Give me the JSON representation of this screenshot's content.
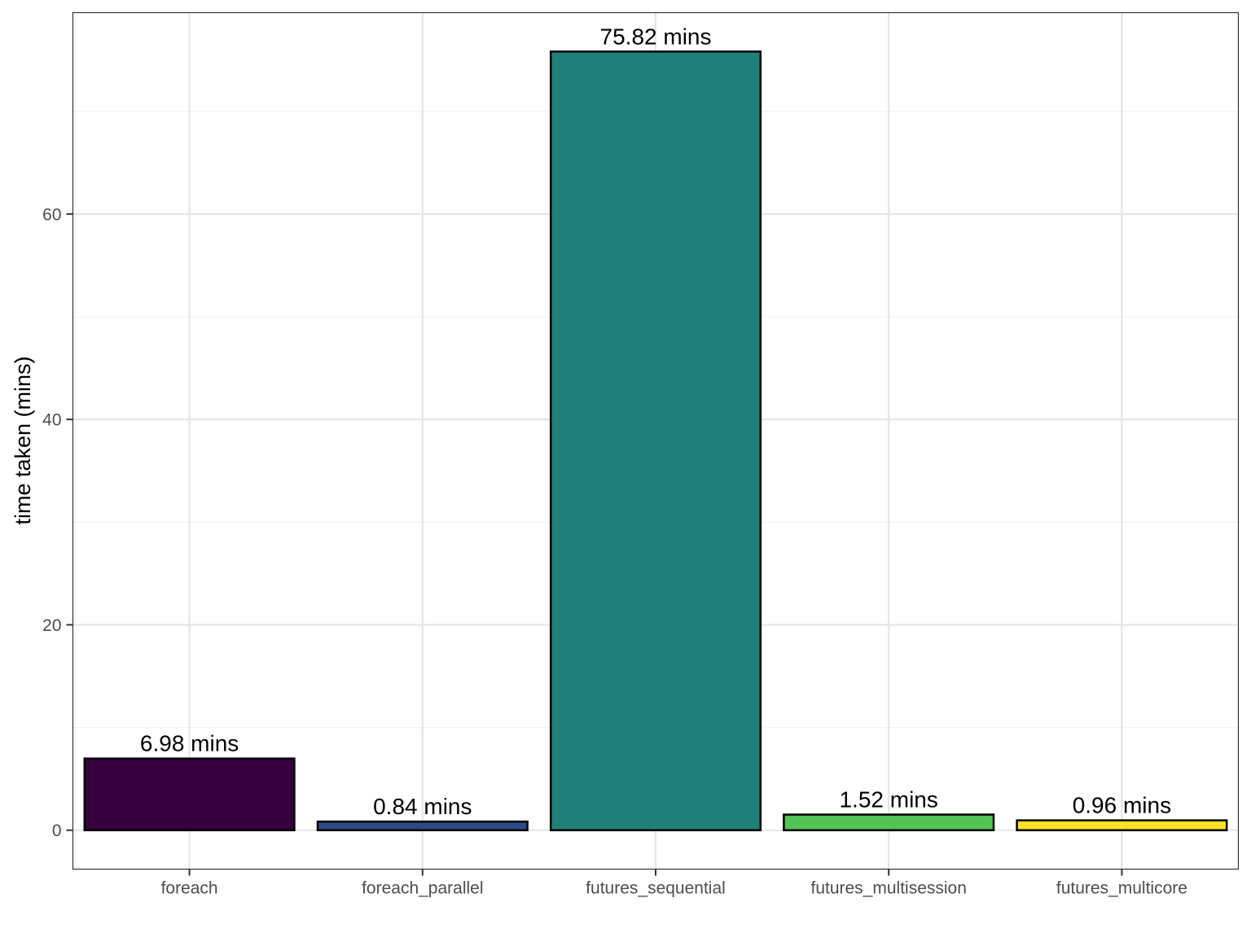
{
  "chart_data": {
    "type": "bar",
    "categories": [
      "foreach",
      "foreach_parallel",
      "futures_sequential",
      "futures_multisession",
      "futures_multicore"
    ],
    "values": [
      6.98,
      0.84,
      75.82,
      1.52,
      0.96
    ],
    "data_labels": [
      "6.98 mins",
      "0.84 mins",
      "75.82 mins",
      "1.52 mins",
      "0.96 mins"
    ],
    "colors": [
      "#35003D",
      "#2E4A85",
      "#208079",
      "#53C356",
      "#F9E224"
    ],
    "title": "",
    "xlabel": "",
    "ylabel": "time taken (mins)",
    "ylim": [
      -3.79,
      79.61
    ],
    "yticks": [
      0,
      20,
      40,
      60
    ],
    "ytick_labels": [
      "0",
      "20",
      "40",
      "60"
    ],
    "grid": true,
    "legend": "none",
    "theme": {
      "panel_border": "#333333",
      "grid_major": "#E5E5E5",
      "grid_minor": "#F2F2F2",
      "bar_outline": "#000000"
    }
  }
}
